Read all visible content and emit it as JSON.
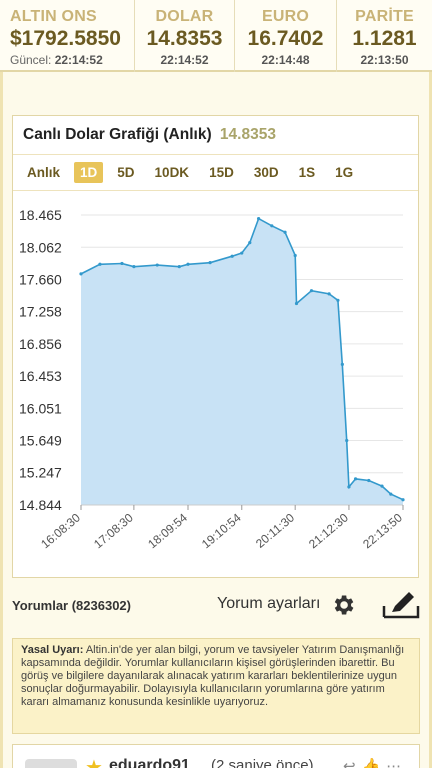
{
  "ticker": [
    {
      "label": "ALTIN ONS",
      "value": "$1792.5850",
      "prefix": "Güncel:",
      "time": "22:14:52"
    },
    {
      "label": "DOLAR",
      "value": "14.8353",
      "time": "22:14:52"
    },
    {
      "label": "EURO",
      "value": "16.7402",
      "time": "22:14:48"
    },
    {
      "label": "PARİTE",
      "value": "1.1281",
      "time": "22:13:50"
    }
  ],
  "chart": {
    "title": "Canlı Dolar Grafiği (Anlık)",
    "current": "14.8353",
    "tabs": [
      "Anlık",
      "1D",
      "5D",
      "10DK",
      "15D",
      "30D",
      "1S",
      "1G"
    ],
    "active_tab": "1D"
  },
  "chart_data": {
    "type": "area",
    "x": [
      "16:08:30",
      "16:30",
      "16:55",
      "17:08:30",
      "17:35",
      "18:00",
      "18:09:54",
      "18:35",
      "19:00",
      "19:10:54",
      "19:20",
      "19:30",
      "19:45",
      "20:00",
      "20:11:30",
      "20:13",
      "20:30",
      "20:50",
      "21:00",
      "21:05",
      "21:10",
      "21:12:30",
      "21:20",
      "21:35",
      "21:50",
      "22:00",
      "22:13:50"
    ],
    "values": [
      17.73,
      17.85,
      17.86,
      17.82,
      17.84,
      17.82,
      17.85,
      17.87,
      17.95,
      17.99,
      18.12,
      18.42,
      18.33,
      18.25,
      17.96,
      17.36,
      17.52,
      17.48,
      17.4,
      16.6,
      15.65,
      15.07,
      15.17,
      15.15,
      15.08,
      14.98,
      14.91
    ],
    "yticks": [
      "18.465",
      "18.062",
      "17.660",
      "17.258",
      "16.856",
      "16.453",
      "16.051",
      "15.649",
      "15.247",
      "14.844"
    ],
    "xticks": [
      "16:08:30",
      "17:08:30",
      "18:09:54",
      "19:10:54",
      "20:11:30",
      "21:12:30",
      "22:13:50"
    ],
    "ylim": [
      14.844,
      18.465
    ],
    "grid": true,
    "colors": {
      "line": "#3399cc",
      "fill": "#c8e2f5"
    }
  },
  "comments": {
    "count_label": "Yorumlar (8236302)",
    "settings_label": "Yorum ayarları",
    "icons": {
      "settings": "gear-icon",
      "write": "pencil-icon"
    }
  },
  "warning": {
    "title": "Yasal Uyarı:",
    "text": "Altin.in'de yer alan bilgi, yorum ve tavsiyeler Yatırım Danışmanlığı kapsamında değildir. Yorumlar kullanıcıların kişisel görüşlerinden ibarettir. Bu görüş ve bilgilere dayanılarak alınacak yatırım kararları beklentilerinize uygun sonuçlar doğurmayabilir. Dolayısıyla kullanıcıların yorumlarına göre yatırım kararı almamanız konusunda kesinlikle uyarıyoruz."
  },
  "first_comment": {
    "user": "eduardo91",
    "ago": "(2 saniye önce)"
  }
}
